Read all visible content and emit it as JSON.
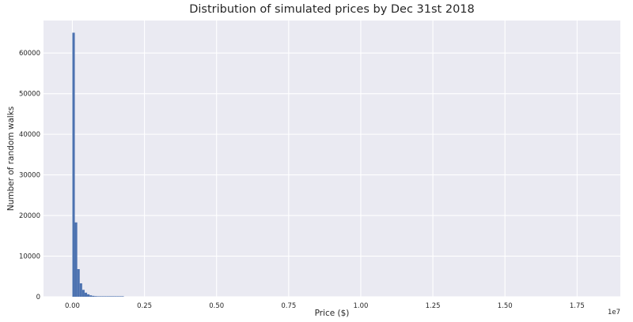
{
  "chart_data": {
    "type": "bar",
    "title": "Distribution of simulated prices by Dec 31st 2018",
    "xlabel": "Price ($)",
    "ylabel": "Number of random walks",
    "x_offset_label": "1e7",
    "xlim": [
      -0.1,
      1.9
    ],
    "ylim": [
      0,
      68000
    ],
    "xticks": [
      0.0,
      0.25,
      0.5,
      0.75,
      1.0,
      1.25,
      1.5,
      1.75
    ],
    "xtick_labels": [
      "0.00",
      "0.25",
      "0.50",
      "0.75",
      "1.00",
      "1.25",
      "1.50",
      "1.75"
    ],
    "yticks": [
      0,
      10000,
      20000,
      30000,
      40000,
      50000,
      60000
    ],
    "ytick_labels": [
      "0",
      "10000",
      "20000",
      "30000",
      "40000",
      "50000",
      "60000"
    ],
    "grid": true,
    "legend": "none",
    "bin_width": 0.0085,
    "bins": [
      {
        "x0": 0.0,
        "value": 65000
      },
      {
        "x0": 0.0085,
        "value": 18300
      },
      {
        "x0": 0.017,
        "value": 6800
      },
      {
        "x0": 0.0255,
        "value": 3300
      },
      {
        "x0": 0.034,
        "value": 1700
      },
      {
        "x0": 0.0425,
        "value": 1000
      },
      {
        "x0": 0.051,
        "value": 600
      },
      {
        "x0": 0.0595,
        "value": 350
      },
      {
        "x0": 0.068,
        "value": 220
      },
      {
        "x0": 0.0765,
        "value": 150
      },
      {
        "x0": 0.085,
        "value": 100
      },
      {
        "x0": 0.0935,
        "value": 70
      },
      {
        "x0": 0.102,
        "value": 50
      },
      {
        "x0": 0.1105,
        "value": 35
      },
      {
        "x0": 0.119,
        "value": 25
      },
      {
        "x0": 0.1275,
        "value": 18
      },
      {
        "x0": 0.136,
        "value": 12
      },
      {
        "x0": 0.1445,
        "value": 8
      },
      {
        "x0": 0.153,
        "value": 6
      },
      {
        "x0": 0.1615,
        "value": 4
      },
      {
        "x0": 0.17,
        "value": 3
      }
    ],
    "colors": {
      "bars": "#4c72b0",
      "plot_background": "#eaeaf2",
      "grid": "#ffffff"
    }
  }
}
